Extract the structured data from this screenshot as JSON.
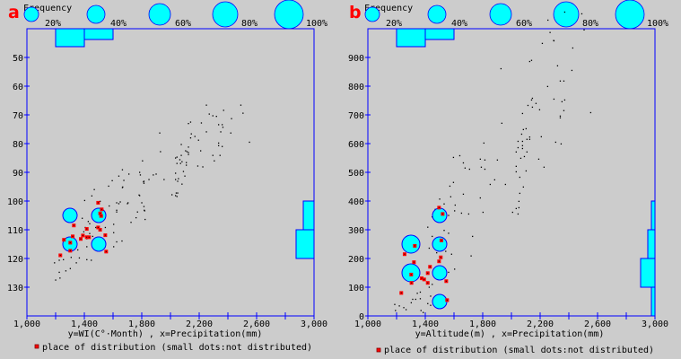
{
  "colors": {
    "background": "#cccccc",
    "frame": "#0000ff",
    "bubble": "#00ffff",
    "distributed": "#ff0000",
    "dot": "#000000"
  },
  "legend": {
    "title": "Frequency",
    "sizes": [
      20,
      40,
      60,
      80,
      100
    ],
    "labels": [
      "20%",
      "40%",
      "60%",
      "80%",
      "100%"
    ],
    "marker_text": "place of distribution (small dots:not distributed)"
  },
  "chart_data": [
    {
      "type": "scatter",
      "panel_label": "a",
      "xlabel": "y=WI(C°·Month) , x=Precipitation(mm)",
      "xlim": [
        1000,
        3000
      ],
      "ylim": [
        140,
        40
      ],
      "y_inverted": true,
      "x_ticks": [
        1000,
        1200,
        1400,
        1600,
        1800,
        2000,
        2200,
        2400,
        2600,
        2800,
        3000
      ],
      "x_tick_labels": [
        "1,000",
        "1,400",
        "1,800",
        "2,200",
        "2,600",
        "3,000"
      ],
      "x_tick_label_values": [
        1000,
        1400,
        1800,
        2200,
        2600,
        3000
      ],
      "y_ticks": [
        50,
        60,
        70,
        80,
        90,
        100,
        110,
        120,
        130
      ],
      "y_tick_labels": [
        "50",
        "60",
        "70",
        "80",
        "90",
        "100",
        "110",
        "120",
        "130"
      ],
      "x_histogram": [
        {
          "from": 1200,
          "to": 1400,
          "percent": 62.5
        },
        {
          "from": 1400,
          "to": 1600,
          "percent": 37.5
        }
      ],
      "y_histogram": [
        {
          "from": 100,
          "to": 110,
          "percent": 37.5
        },
        {
          "from": 110,
          "to": 120,
          "percent": 62.5
        }
      ],
      "bubbles": [
        {
          "x": 1300,
          "y": 105,
          "percent": 20
        },
        {
          "x": 1500,
          "y": 105,
          "percent": 20
        },
        {
          "x": 1300,
          "y": 115,
          "percent": 20
        },
        {
          "x": 1500,
          "y": 115,
          "percent": 20
        }
      ],
      "distributed_points": [
        [
          1496,
          100.6
        ],
        [
          1521,
          102.9
        ],
        [
          1510,
          104.3
        ],
        [
          1517,
          105.2
        ],
        [
          1327,
          108.5
        ],
        [
          1496,
          109.2
        ],
        [
          1510,
          110
        ],
        [
          1417,
          109.7
        ],
        [
          1546,
          111.9
        ],
        [
          1390,
          112
        ],
        [
          1417,
          112.6
        ],
        [
          1433,
          112.6
        ],
        [
          1375,
          113.2
        ],
        [
          1319,
          112.3
        ],
        [
          1258,
          113.5
        ],
        [
          1302,
          114.5
        ],
        [
          1302,
          117.3
        ],
        [
          1552,
          117.6
        ],
        [
          1233,
          118.9
        ]
      ],
      "other_points": [
        [
          2250,
          66.6
        ],
        [
          2490,
          66.6
        ],
        [
          2370,
          68.4
        ],
        [
          2270,
          69.7
        ],
        [
          2295,
          70.3
        ],
        [
          2320,
          70.5
        ],
        [
          2505,
          69.4
        ],
        [
          2425,
          71.3
        ],
        [
          2140,
          72.5
        ],
        [
          2125,
          73
        ],
        [
          2215,
          72.8
        ],
        [
          2335,
          73.4
        ],
        [
          2360,
          73.4
        ],
        [
          2365,
          74.3
        ],
        [
          1925,
          76.3
        ],
        [
          2250,
          75.9
        ],
        [
          2350,
          75.9
        ],
        [
          2420,
          76.3
        ],
        [
          2145,
          76.6
        ],
        [
          2170,
          77.5
        ],
        [
          2140,
          78
        ],
        [
          2195,
          78.8
        ],
        [
          2550,
          79.5
        ],
        [
          2335,
          79.8
        ],
        [
          2335,
          80.7
        ],
        [
          2360,
          81
        ],
        [
          2075,
          80.3
        ],
        [
          2125,
          81.2
        ],
        [
          2210,
          82.5
        ],
        [
          2105,
          82.5
        ],
        [
          2115,
          82.8
        ],
        [
          2125,
          83.1
        ],
        [
          2125,
          83.8
        ],
        [
          1930,
          82.8
        ],
        [
          2075,
          84.1
        ],
        [
          2045,
          84.7
        ],
        [
          2035,
          85
        ],
        [
          2295,
          84.1
        ],
        [
          2345,
          84.1
        ],
        [
          2305,
          86
        ],
        [
          2065,
          85.6
        ],
        [
          2080,
          86.3
        ],
        [
          2110,
          86.6
        ],
        [
          2045,
          86.9
        ],
        [
          2070,
          86.9
        ],
        [
          2110,
          87.5
        ],
        [
          2190,
          87.8
        ],
        [
          2225,
          88.1
        ],
        [
          1805,
          86
        ],
        [
          1665,
          89.1
        ],
        [
          1640,
          91.3
        ],
        [
          1710,
          90.6
        ],
        [
          1785,
          90
        ],
        [
          1790,
          90.9
        ],
        [
          1675,
          92.8
        ],
        [
          1815,
          93.1
        ],
        [
          1815,
          93.8
        ],
        [
          1850,
          92.5
        ],
        [
          1880,
          90.9
        ],
        [
          1900,
          90.6
        ],
        [
          1955,
          92.5
        ],
        [
          2035,
          90.3
        ],
        [
          2090,
          89.7
        ],
        [
          2100,
          91.3
        ],
        [
          2035,
          92.5
        ],
        [
          2055,
          92.2
        ],
        [
          2050,
          93.1
        ],
        [
          2080,
          94.1
        ],
        [
          1665,
          95.3
        ],
        [
          1785,
          98.1
        ],
        [
          2010,
          97.8
        ],
        [
          2040,
          97.2
        ],
        [
          2050,
          97.2
        ],
        [
          2035,
          98.1
        ],
        [
          2045,
          98.4
        ],
        [
          1650,
          100.3
        ],
        [
          1640,
          100.9
        ],
        [
          1700,
          100.9
        ],
        [
          1800,
          100.6
        ],
        [
          1815,
          101.9
        ],
        [
          1820,
          103.4
        ],
        [
          1770,
          103.8
        ],
        [
          1625,
          103.8
        ],
        [
          1594,
          92.9
        ],
        [
          1812,
          93.3
        ],
        [
          1667,
          95.1
        ],
        [
          1569,
          94.8
        ],
        [
          1469,
          96
        ],
        [
          1452,
          98.2
        ],
        [
          1402,
          99.8
        ],
        [
          1510,
          100.1
        ],
        [
          1625,
          100.6
        ],
        [
          1704,
          100.6
        ],
        [
          1781,
          97.9
        ],
        [
          1573,
          101.7
        ],
        [
          1625,
          103.2
        ],
        [
          1817,
          103.2
        ],
        [
          1385,
          106
        ],
        [
          1427,
          107.1
        ],
        [
          1437,
          107.9
        ],
        [
          1406,
          109.2
        ],
        [
          1479,
          109.2
        ],
        [
          1546,
          109.2
        ],
        [
          1604,
          108.1
        ],
        [
          1760,
          105.8
        ],
        [
          1823,
          106.4
        ],
        [
          1725,
          107.4
        ],
        [
          1396,
          110.7
        ],
        [
          1437,
          111.3
        ],
        [
          1458,
          112.3
        ],
        [
          1417,
          113.1
        ],
        [
          1479,
          113.3
        ],
        [
          1604,
          111
        ],
        [
          1625,
          114.2
        ],
        [
          1662,
          113.9
        ],
        [
          1531,
          114.4
        ],
        [
          1604,
          115.9
        ],
        [
          1417,
          115.9
        ],
        [
          1354,
          117
        ],
        [
          1308,
          119.6
        ],
        [
          1365,
          119.8
        ],
        [
          1417,
          120.4
        ],
        [
          1448,
          120.6
        ],
        [
          1344,
          121.5
        ],
        [
          1225,
          120.6
        ],
        [
          1254,
          120.4
        ],
        [
          1192,
          121.5
        ],
        [
          1271,
          124.3
        ],
        [
          1225,
          124.8
        ],
        [
          1302,
          123.5
        ],
        [
          1200,
          127.5
        ],
        [
          1230,
          126.8
        ]
      ]
    },
    {
      "type": "scatter",
      "panel_label": "b",
      "xlabel": "y=Altitude(m) , x=Precipitation(mm)",
      "xlim": [
        1000,
        3000
      ],
      "ylim": [
        0,
        1000
      ],
      "x_ticks": [
        1000,
        1200,
        1400,
        1600,
        1800,
        2000,
        2200,
        2400,
        2600,
        2800,
        3000
      ],
      "x_tick_labels": [
        "1,000",
        "1,400",
        "1,800",
        "2,200",
        "2,600",
        "3,000"
      ],
      "x_tick_label_values": [
        1000,
        1400,
        1800,
        2200,
        2600,
        3000
      ],
      "y_ticks": [
        0,
        100,
        200,
        300,
        400,
        500,
        600,
        700,
        800,
        900
      ],
      "y_tick_labels": [
        "0",
        "100",
        "200",
        "300",
        "400",
        "500",
        "600",
        "700",
        "800",
        "900"
      ],
      "x_histogram": [
        {
          "from": 1200,
          "to": 1400,
          "percent": 62.5
        },
        {
          "from": 1400,
          "to": 1600,
          "percent": 37.5
        }
      ],
      "y_histogram": [
        {
          "from": 0,
          "to": 100,
          "percent": 12.5
        },
        {
          "from": 100,
          "to": 200,
          "percent": 50
        },
        {
          "from": 200,
          "to": 300,
          "percent": 25
        },
        {
          "from": 300,
          "to": 400,
          "percent": 12.5
        }
      ],
      "bubbles": [
        {
          "x": 1500,
          "y": 350,
          "percent": 20
        },
        {
          "x": 1300,
          "y": 250,
          "percent": 40
        },
        {
          "x": 1500,
          "y": 250,
          "percent": 20
        },
        {
          "x": 1300,
          "y": 150,
          "percent": 40
        },
        {
          "x": 1500,
          "y": 150,
          "percent": 20
        },
        {
          "x": 1500,
          "y": 50,
          "percent": 20
        }
      ],
      "distributed_points": [
        [
          1496,
          377
        ],
        [
          1521,
          355
        ],
        [
          1327,
          244
        ],
        [
          1256,
          215
        ],
        [
          1512,
          263
        ],
        [
          1508,
          204
        ],
        [
          1496,
          190
        ],
        [
          1321,
          187
        ],
        [
          1433,
          171
        ],
        [
          1417,
          149
        ],
        [
          1375,
          131
        ],
        [
          1392,
          127
        ],
        [
          1417,
          115
        ],
        [
          1304,
          115
        ],
        [
          1546,
          121
        ],
        [
          1233,
          80
        ],
        [
          1552,
          55
        ],
        [
          1302,
          144
        ]
      ],
      "other_points": [
        [
          2215,
          949
        ],
        [
          2296,
          958
        ],
        [
          2427,
          933
        ],
        [
          2127,
          886
        ],
        [
          2140,
          890
        ],
        [
          1927,
          861
        ],
        [
          2321,
          871
        ],
        [
          2421,
          855
        ],
        [
          2340,
          818
        ],
        [
          2365,
          818
        ],
        [
          2252,
          799
        ],
        [
          2146,
          758
        ],
        [
          2140,
          752
        ],
        [
          2115,
          733
        ],
        [
          2171,
          740
        ],
        [
          2146,
          727
        ],
        [
          2296,
          755
        ],
        [
          2352,
          746
        ],
        [
          2371,
          752
        ],
        [
          2196,
          718
        ],
        [
          2365,
          715
        ],
        [
          2340,
          696
        ],
        [
          2340,
          690
        ],
        [
          2552,
          708
        ],
        [
          2077,
          705
        ],
        [
          1933,
          671
        ],
        [
          2083,
          649
        ],
        [
          2102,
          652
        ],
        [
          2071,
          633
        ],
        [
          2127,
          623
        ],
        [
          2127,
          615
        ],
        [
          2108,
          615
        ],
        [
          2208,
          624
        ],
        [
          2046,
          608
        ],
        [
          2077,
          608
        ],
        [
          2077,
          593
        ],
        [
          2077,
          583
        ],
        [
          2046,
          586
        ],
        [
          2033,
          571
        ],
        [
          2108,
          571
        ],
        [
          2308,
          605
        ],
        [
          2346,
          599
        ],
        [
          2090,
          555
        ],
        [
          2065,
          549
        ],
        [
          2190,
          546
        ],
        [
          1808,
          602
        ],
        [
          1596,
          552
        ],
        [
          1640,
          558
        ],
        [
          1665,
          533
        ],
        [
          1677,
          515
        ],
        [
          1708,
          511
        ],
        [
          1783,
          546
        ],
        [
          1815,
          543
        ],
        [
          1902,
          543
        ],
        [
          1790,
          518
        ],
        [
          1815,
          511
        ],
        [
          2033,
          521
        ],
        [
          2033,
          502
        ],
        [
          2102,
          505
        ],
        [
          2227,
          518
        ],
        [
          2058,
          483
        ],
        [
          1883,
          474
        ],
        [
          1852,
          458
        ],
        [
          1958,
          458
        ],
        [
          1596,
          465
        ],
        [
          1571,
          452
        ],
        [
          1665,
          424
        ],
        [
          1577,
          415
        ],
        [
          1783,
          411
        ],
        [
          1608,
          386
        ],
        [
          1652,
          358
        ],
        [
          1702,
          355
        ],
        [
          1802,
          361
        ],
        [
          2058,
          427
        ],
        [
          2083,
          449
        ],
        [
          2052,
          399
        ],
        [
          2052,
          377
        ],
        [
          2033,
          374
        ],
        [
          2008,
          361
        ],
        [
          2046,
          355
        ],
        [
          2371,
          1058
        ],
        [
          2490,
          1052
        ],
        [
          2254,
          1030
        ],
        [
          2506,
          996
        ],
        [
          2269,
          987
        ],
        [
          2294,
          959
        ],
        [
          1187,
          40
        ],
        [
          1219,
          35
        ],
        [
          1250,
          29
        ],
        [
          1266,
          22
        ],
        [
          1192,
          19
        ],
        [
          1302,
          46
        ],
        [
          1333,
          58
        ],
        [
          1365,
          60
        ],
        [
          1370,
          19
        ],
        [
          1385,
          12
        ],
        [
          1417,
          43
        ],
        [
          1437,
          37
        ],
        [
          1312,
          58
        ],
        [
          1344,
          79
        ],
        [
          1365,
          83
        ],
        [
          1437,
          69
        ],
        [
          1427,
          100
        ],
        [
          1448,
          110
        ],
        [
          1562,
          152
        ],
        [
          1604,
          163
        ],
        [
          1583,
          215
        ],
        [
          1542,
          225
        ],
        [
          1479,
          220
        ],
        [
          1427,
          236
        ],
        [
          1458,
          257
        ],
        [
          1448,
          277
        ],
        [
          1562,
          288
        ],
        [
          1417,
          309
        ],
        [
          1562,
          350
        ],
        [
          1604,
          366
        ],
        [
          1729,
          277
        ],
        [
          1719,
          209
        ],
        [
          1531,
          298
        ],
        [
          1469,
          371
        ],
        [
          1448,
          345
        ],
        [
          1500,
          407
        ],
        [
          1531,
          390
        ]
      ]
    }
  ]
}
